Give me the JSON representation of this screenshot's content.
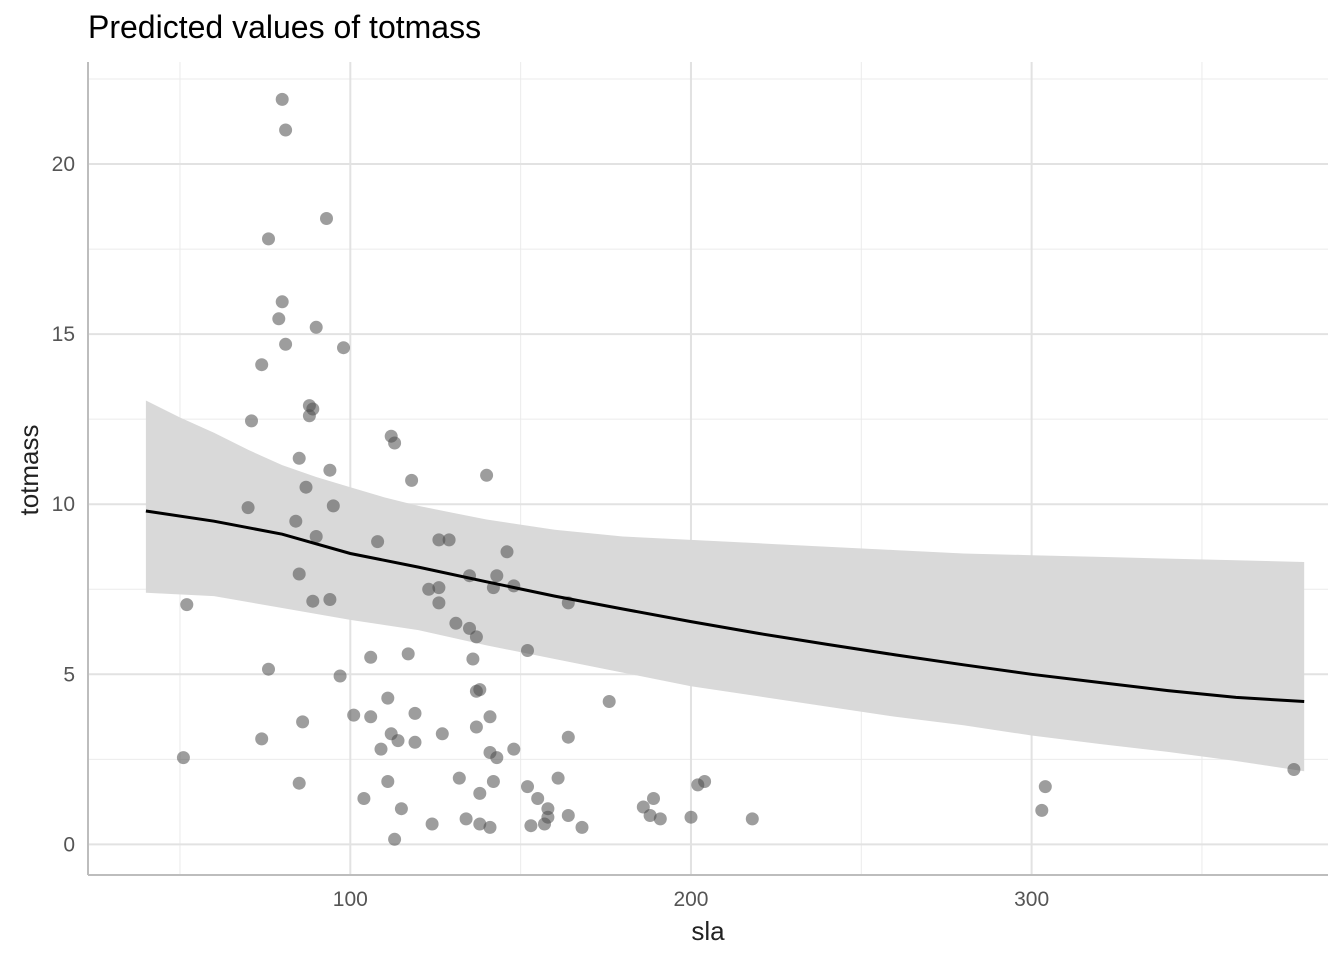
{
  "chart_data": {
    "type": "scatter",
    "title": "Predicted values of totmass",
    "xlabel": "sla",
    "ylabel": "totmass",
    "xlim": [
      23,
      387
    ],
    "ylim": [
      -0.9,
      23.0
    ],
    "x_ticks": [
      100,
      200,
      300
    ],
    "y_ticks": [
      0,
      5,
      10,
      15,
      20
    ],
    "grid": true,
    "colors": {
      "points": "#4d4d4d",
      "line": "#000000",
      "band": "#d9d9d9",
      "grid": "#ebebeb",
      "axis": "#bdbdbd"
    },
    "points": [
      [
        80,
        21.9
      ],
      [
        81,
        21.0
      ],
      [
        93,
        18.4
      ],
      [
        76,
        17.8
      ],
      [
        80,
        15.95
      ],
      [
        79,
        15.45
      ],
      [
        90,
        15.2
      ],
      [
        81,
        14.7
      ],
      [
        98,
        14.6
      ],
      [
        74,
        14.1
      ],
      [
        71,
        12.45
      ],
      [
        88,
        12.9
      ],
      [
        89,
        12.8
      ],
      [
        88,
        12.6
      ],
      [
        112,
        12.0
      ],
      [
        113,
        11.8
      ],
      [
        85,
        11.35
      ],
      [
        94,
        11.0
      ],
      [
        140,
        10.85
      ],
      [
        118,
        10.7
      ],
      [
        87,
        10.5
      ],
      [
        95,
        9.95
      ],
      [
        70,
        9.9
      ],
      [
        84,
        9.5
      ],
      [
        90,
        9.05
      ],
      [
        108,
        8.9
      ],
      [
        126,
        8.95
      ],
      [
        129,
        8.95
      ],
      [
        146,
        8.6
      ],
      [
        85,
        7.95
      ],
      [
        135,
        7.9
      ],
      [
        143,
        7.9
      ],
      [
        142,
        7.55
      ],
      [
        148,
        7.6
      ],
      [
        126,
        7.55
      ],
      [
        123,
        7.5
      ],
      [
        94,
        7.2
      ],
      [
        89,
        7.15
      ],
      [
        164,
        7.1
      ],
      [
        126,
        7.1
      ],
      [
        52,
        7.05
      ],
      [
        131,
        6.5
      ],
      [
        135,
        6.35
      ],
      [
        137,
        6.1
      ],
      [
        152,
        5.7
      ],
      [
        117,
        5.6
      ],
      [
        106,
        5.5
      ],
      [
        136,
        5.45
      ],
      [
        76,
        5.15
      ],
      [
        97,
        4.95
      ],
      [
        138,
        4.55
      ],
      [
        137,
        4.5
      ],
      [
        111,
        4.3
      ],
      [
        176,
        4.2
      ],
      [
        119,
        3.85
      ],
      [
        101,
        3.8
      ],
      [
        106,
        3.75
      ],
      [
        141,
        3.75
      ],
      [
        86,
        3.6
      ],
      [
        137,
        3.45
      ],
      [
        112,
        3.25
      ],
      [
        127,
        3.25
      ],
      [
        164,
        3.15
      ],
      [
        74,
        3.1
      ],
      [
        114,
        3.05
      ],
      [
        119,
        3.0
      ],
      [
        109,
        2.8
      ],
      [
        148,
        2.8
      ],
      [
        141,
        2.7
      ],
      [
        143,
        2.55
      ],
      [
        51,
        2.55
      ],
      [
        377,
        2.2
      ],
      [
        132,
        1.95
      ],
      [
        161,
        1.95
      ],
      [
        142,
        1.85
      ],
      [
        111,
        1.85
      ],
      [
        85,
        1.8
      ],
      [
        204,
        1.85
      ],
      [
        202,
        1.75
      ],
      [
        152,
        1.7
      ],
      [
        304,
        1.7
      ],
      [
        138,
        1.5
      ],
      [
        155,
        1.35
      ],
      [
        189,
        1.35
      ],
      [
        104,
        1.35
      ],
      [
        186,
        1.1
      ],
      [
        158,
        1.05
      ],
      [
        115,
        1.05
      ],
      [
        303,
        1.0
      ],
      [
        188,
        0.85
      ],
      [
        164,
        0.85
      ],
      [
        158,
        0.8
      ],
      [
        200,
        0.8
      ],
      [
        191,
        0.75
      ],
      [
        134,
        0.75
      ],
      [
        218,
        0.75
      ],
      [
        157,
        0.6
      ],
      [
        138,
        0.6
      ],
      [
        124,
        0.6
      ],
      [
        153,
        0.55
      ],
      [
        141,
        0.5
      ],
      [
        168,
        0.5
      ],
      [
        113,
        0.15
      ]
    ],
    "line": [
      [
        40,
        9.8
      ],
      [
        60,
        9.5
      ],
      [
        80,
        9.12
      ],
      [
        100,
        8.55
      ],
      [
        120,
        8.15
      ],
      [
        140,
        7.72
      ],
      [
        160,
        7.3
      ],
      [
        180,
        6.92
      ],
      [
        200,
        6.55
      ],
      [
        220,
        6.2
      ],
      [
        240,
        5.88
      ],
      [
        260,
        5.57
      ],
      [
        280,
        5.28
      ],
      [
        300,
        5.0
      ],
      [
        320,
        4.76
      ],
      [
        340,
        4.52
      ],
      [
        360,
        4.32
      ],
      [
        380,
        4.2
      ]
    ],
    "ci_upper": [
      [
        40,
        13.05
      ],
      [
        50,
        12.55
      ],
      [
        60,
        12.1
      ],
      [
        70,
        11.6
      ],
      [
        80,
        11.15
      ],
      [
        90,
        10.8
      ],
      [
        100,
        10.5
      ],
      [
        110,
        10.2
      ],
      [
        120,
        9.95
      ],
      [
        130,
        9.75
      ],
      [
        140,
        9.55
      ],
      [
        160,
        9.25
      ],
      [
        180,
        9.05
      ],
      [
        200,
        8.95
      ],
      [
        220,
        8.85
      ],
      [
        240,
        8.75
      ],
      [
        260,
        8.65
      ],
      [
        280,
        8.55
      ],
      [
        300,
        8.5
      ],
      [
        320,
        8.45
      ],
      [
        340,
        8.4
      ],
      [
        360,
        8.35
      ],
      [
        380,
        8.3
      ]
    ],
    "ci_lower": [
      [
        40,
        7.4
      ],
      [
        60,
        7.3
      ],
      [
        80,
        6.95
      ],
      [
        100,
        6.6
      ],
      [
        120,
        6.3
      ],
      [
        140,
        5.85
      ],
      [
        160,
        5.45
      ],
      [
        180,
        5.05
      ],
      [
        200,
        4.65
      ],
      [
        220,
        4.35
      ],
      [
        240,
        4.05
      ],
      [
        260,
        3.75
      ],
      [
        280,
        3.5
      ],
      [
        300,
        3.2
      ],
      [
        320,
        2.95
      ],
      [
        340,
        2.72
      ],
      [
        360,
        2.45
      ],
      [
        380,
        2.15
      ]
    ]
  }
}
